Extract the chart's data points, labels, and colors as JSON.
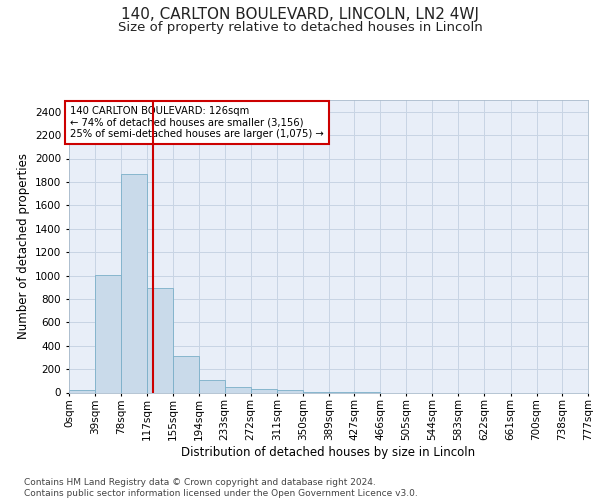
{
  "title": "140, CARLTON BOULEVARD, LINCOLN, LN2 4WJ",
  "subtitle": "Size of property relative to detached houses in Lincoln",
  "xlabel": "Distribution of detached houses by size in Lincoln",
  "ylabel": "Number of detached properties",
  "bar_color": "#c9daea",
  "bar_edge_color": "#7aafc8",
  "grid_color": "#c8d4e4",
  "background_color": "#e8eef8",
  "vline_color": "#cc0000",
  "vline_x": 126,
  "annotation_text": "140 CARLTON BOULEVARD: 126sqm\n← 74% of detached houses are smaller (3,156)\n25% of semi-detached houses are larger (1,075) →",
  "annotation_box_color": "#cc0000",
  "bins": [
    0,
    39,
    78,
    117,
    155,
    194,
    233,
    272,
    311,
    350,
    389,
    427,
    466,
    505,
    544,
    583,
    622,
    661,
    700,
    738,
    777
  ],
  "bin_labels": [
    "0sqm",
    "39sqm",
    "78sqm",
    "117sqm",
    "155sqm",
    "194sqm",
    "233sqm",
    "272sqm",
    "311sqm",
    "350sqm",
    "389sqm",
    "427sqm",
    "466sqm",
    "505sqm",
    "544sqm",
    "583sqm",
    "622sqm",
    "661sqm",
    "700sqm",
    "738sqm",
    "777sqm"
  ],
  "bar_heights": [
    20,
    1005,
    1870,
    890,
    310,
    105,
    50,
    30,
    20,
    5,
    2,
    1,
    0,
    0,
    0,
    0,
    0,
    0,
    0,
    0
  ],
  "ylim": [
    0,
    2500
  ],
  "yticks": [
    0,
    200,
    400,
    600,
    800,
    1000,
    1200,
    1400,
    1600,
    1800,
    2000,
    2200,
    2400
  ],
  "footer_text": "Contains HM Land Registry data © Crown copyright and database right 2024.\nContains public sector information licensed under the Open Government Licence v3.0.",
  "title_fontsize": 11,
  "subtitle_fontsize": 9.5,
  "axis_label_fontsize": 8.5,
  "tick_fontsize": 7.5,
  "footer_fontsize": 6.5
}
